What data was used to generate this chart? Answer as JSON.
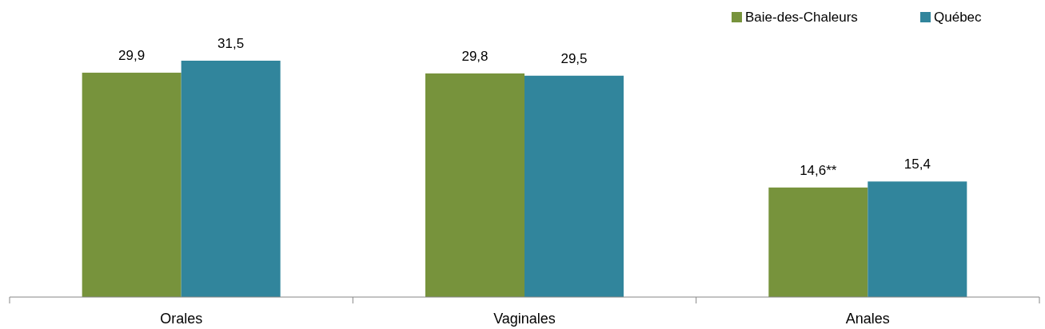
{
  "chart_data": {
    "type": "bar",
    "categories": [
      "Orales",
      "Vaginales",
      "Anales"
    ],
    "series": [
      {
        "name": "Baie-des-Chaleurs",
        "color": "#77933c",
        "values": [
          29.9,
          29.8,
          14.6
        ],
        "value_labels": [
          "29,9",
          "29,8",
          "14,6**"
        ]
      },
      {
        "name": "Québec",
        "color": "#31859c",
        "values": [
          31.5,
          29.5,
          15.4
        ],
        "value_labels": [
          "31,5",
          "29,5",
          "15,4"
        ]
      }
    ],
    "legend": "top right"
  }
}
